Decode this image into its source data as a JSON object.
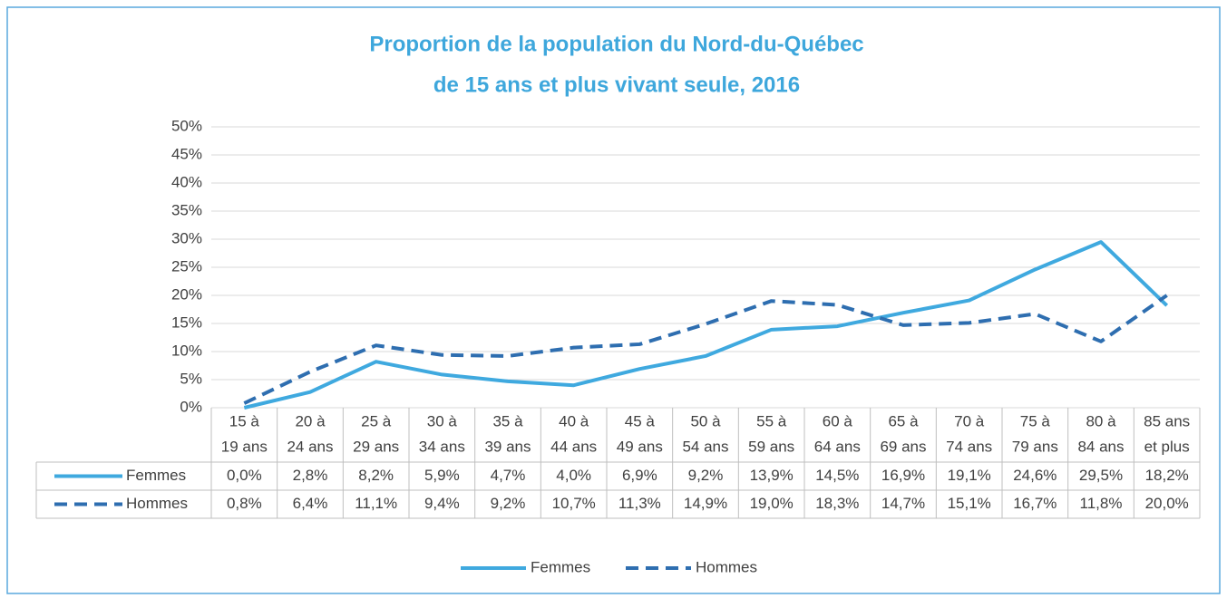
{
  "chart_data": {
    "type": "line",
    "title": [
      "Proportion de la population du Nord-du-Québec",
      "de 15 ans et plus vivant seule, 2016"
    ],
    "categories": [
      [
        "15 à",
        "19 ans"
      ],
      [
        "20 à",
        "24 ans"
      ],
      [
        "25 à",
        "29 ans"
      ],
      [
        "30 à",
        "34 ans"
      ],
      [
        "35 à",
        "39 ans"
      ],
      [
        "40 à",
        "44 ans"
      ],
      [
        "45 à",
        "49 ans"
      ],
      [
        "50 à",
        "54 ans"
      ],
      [
        "55 à",
        "59 ans"
      ],
      [
        "60 à",
        "64 ans"
      ],
      [
        "65 à",
        "69 ans"
      ],
      [
        "70 à",
        "74 ans"
      ],
      [
        "75 à",
        "79 ans"
      ],
      [
        "80 à",
        "84 ans"
      ],
      [
        "85 ans",
        "et plus"
      ]
    ],
    "series": [
      {
        "name": "Femmes",
        "color": "#3fa9df",
        "dash": false,
        "values": [
          0.0,
          2.8,
          8.2,
          5.9,
          4.7,
          4.0,
          6.9,
          9.2,
          13.9,
          14.5,
          16.9,
          19.1,
          24.6,
          29.5,
          18.2
        ],
        "value_labels": [
          "0,0%",
          "2,8%",
          "8,2%",
          "5,9%",
          "4,7%",
          "4,0%",
          "6,9%",
          "9,2%",
          "13,9%",
          "14,5%",
          "16,9%",
          "19,1%",
          "24,6%",
          "29,5%",
          "18,2%"
        ]
      },
      {
        "name": "Hommes",
        "color": "#2e6eb0",
        "dash": true,
        "values": [
          0.8,
          6.4,
          11.1,
          9.4,
          9.2,
          10.7,
          11.3,
          14.9,
          19.0,
          18.3,
          14.7,
          15.1,
          16.7,
          11.8,
          20.0
        ],
        "value_labels": [
          "0,8%",
          "6,4%",
          "11,1%",
          "9,4%",
          "9,2%",
          "10,7%",
          "11,3%",
          "14,9%",
          "19,0%",
          "18,3%",
          "14,7%",
          "15,1%",
          "16,7%",
          "11,8%",
          "20,0%"
        ]
      }
    ],
    "ylim": [
      0,
      50
    ],
    "yticks": [
      {
        "value": 0,
        "label": "0%"
      },
      {
        "value": 5,
        "label": "5%"
      },
      {
        "value": 10,
        "label": "10%"
      },
      {
        "value": 15,
        "label": "15%"
      },
      {
        "value": 20,
        "label": "20%"
      },
      {
        "value": 25,
        "label": "25%"
      },
      {
        "value": 30,
        "label": "30%"
      },
      {
        "value": 35,
        "label": "35%"
      },
      {
        "value": 40,
        "label": "40%"
      },
      {
        "value": 45,
        "label": "45%"
      },
      {
        "value": 50,
        "label": "50%"
      }
    ],
    "grid": true,
    "legend": "bottom"
  }
}
